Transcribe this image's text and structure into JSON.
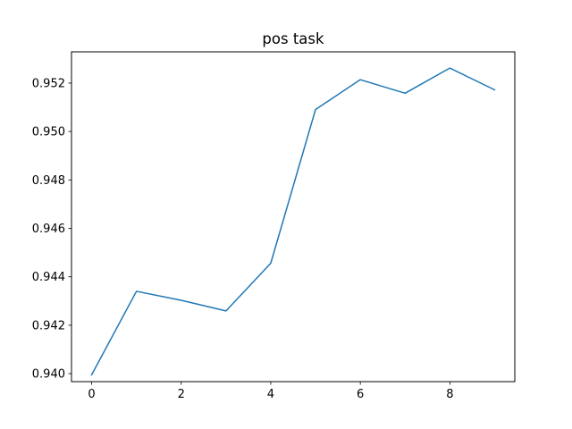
{
  "chart_data": {
    "type": "line",
    "title": "pos task",
    "xlabel": "",
    "ylabel": "",
    "x": [
      0,
      1,
      2,
      3,
      4,
      5,
      6,
      7,
      8,
      9
    ],
    "series": [
      {
        "values": [
          0.93995,
          0.9434,
          0.94303,
          0.94259,
          0.94456,
          0.95091,
          0.95214,
          0.95158,
          0.95262,
          0.95172
        ],
        "color": "#1f77b4"
      }
    ],
    "xlim": [
      -0.45,
      9.45
    ],
    "ylim": [
      0.93967,
      0.95329
    ],
    "xticks": [
      0,
      2,
      4,
      6,
      8
    ],
    "xtick_labels": [
      "0",
      "2",
      "4",
      "6",
      "8"
    ],
    "yticks": [
      0.94,
      0.942,
      0.944,
      0.946,
      0.948,
      0.95,
      0.952
    ],
    "ytick_labels": [
      "0.940",
      "0.942",
      "0.944",
      "0.946",
      "0.948",
      "0.950",
      "0.952"
    ],
    "grid": false,
    "legend": "none"
  }
}
